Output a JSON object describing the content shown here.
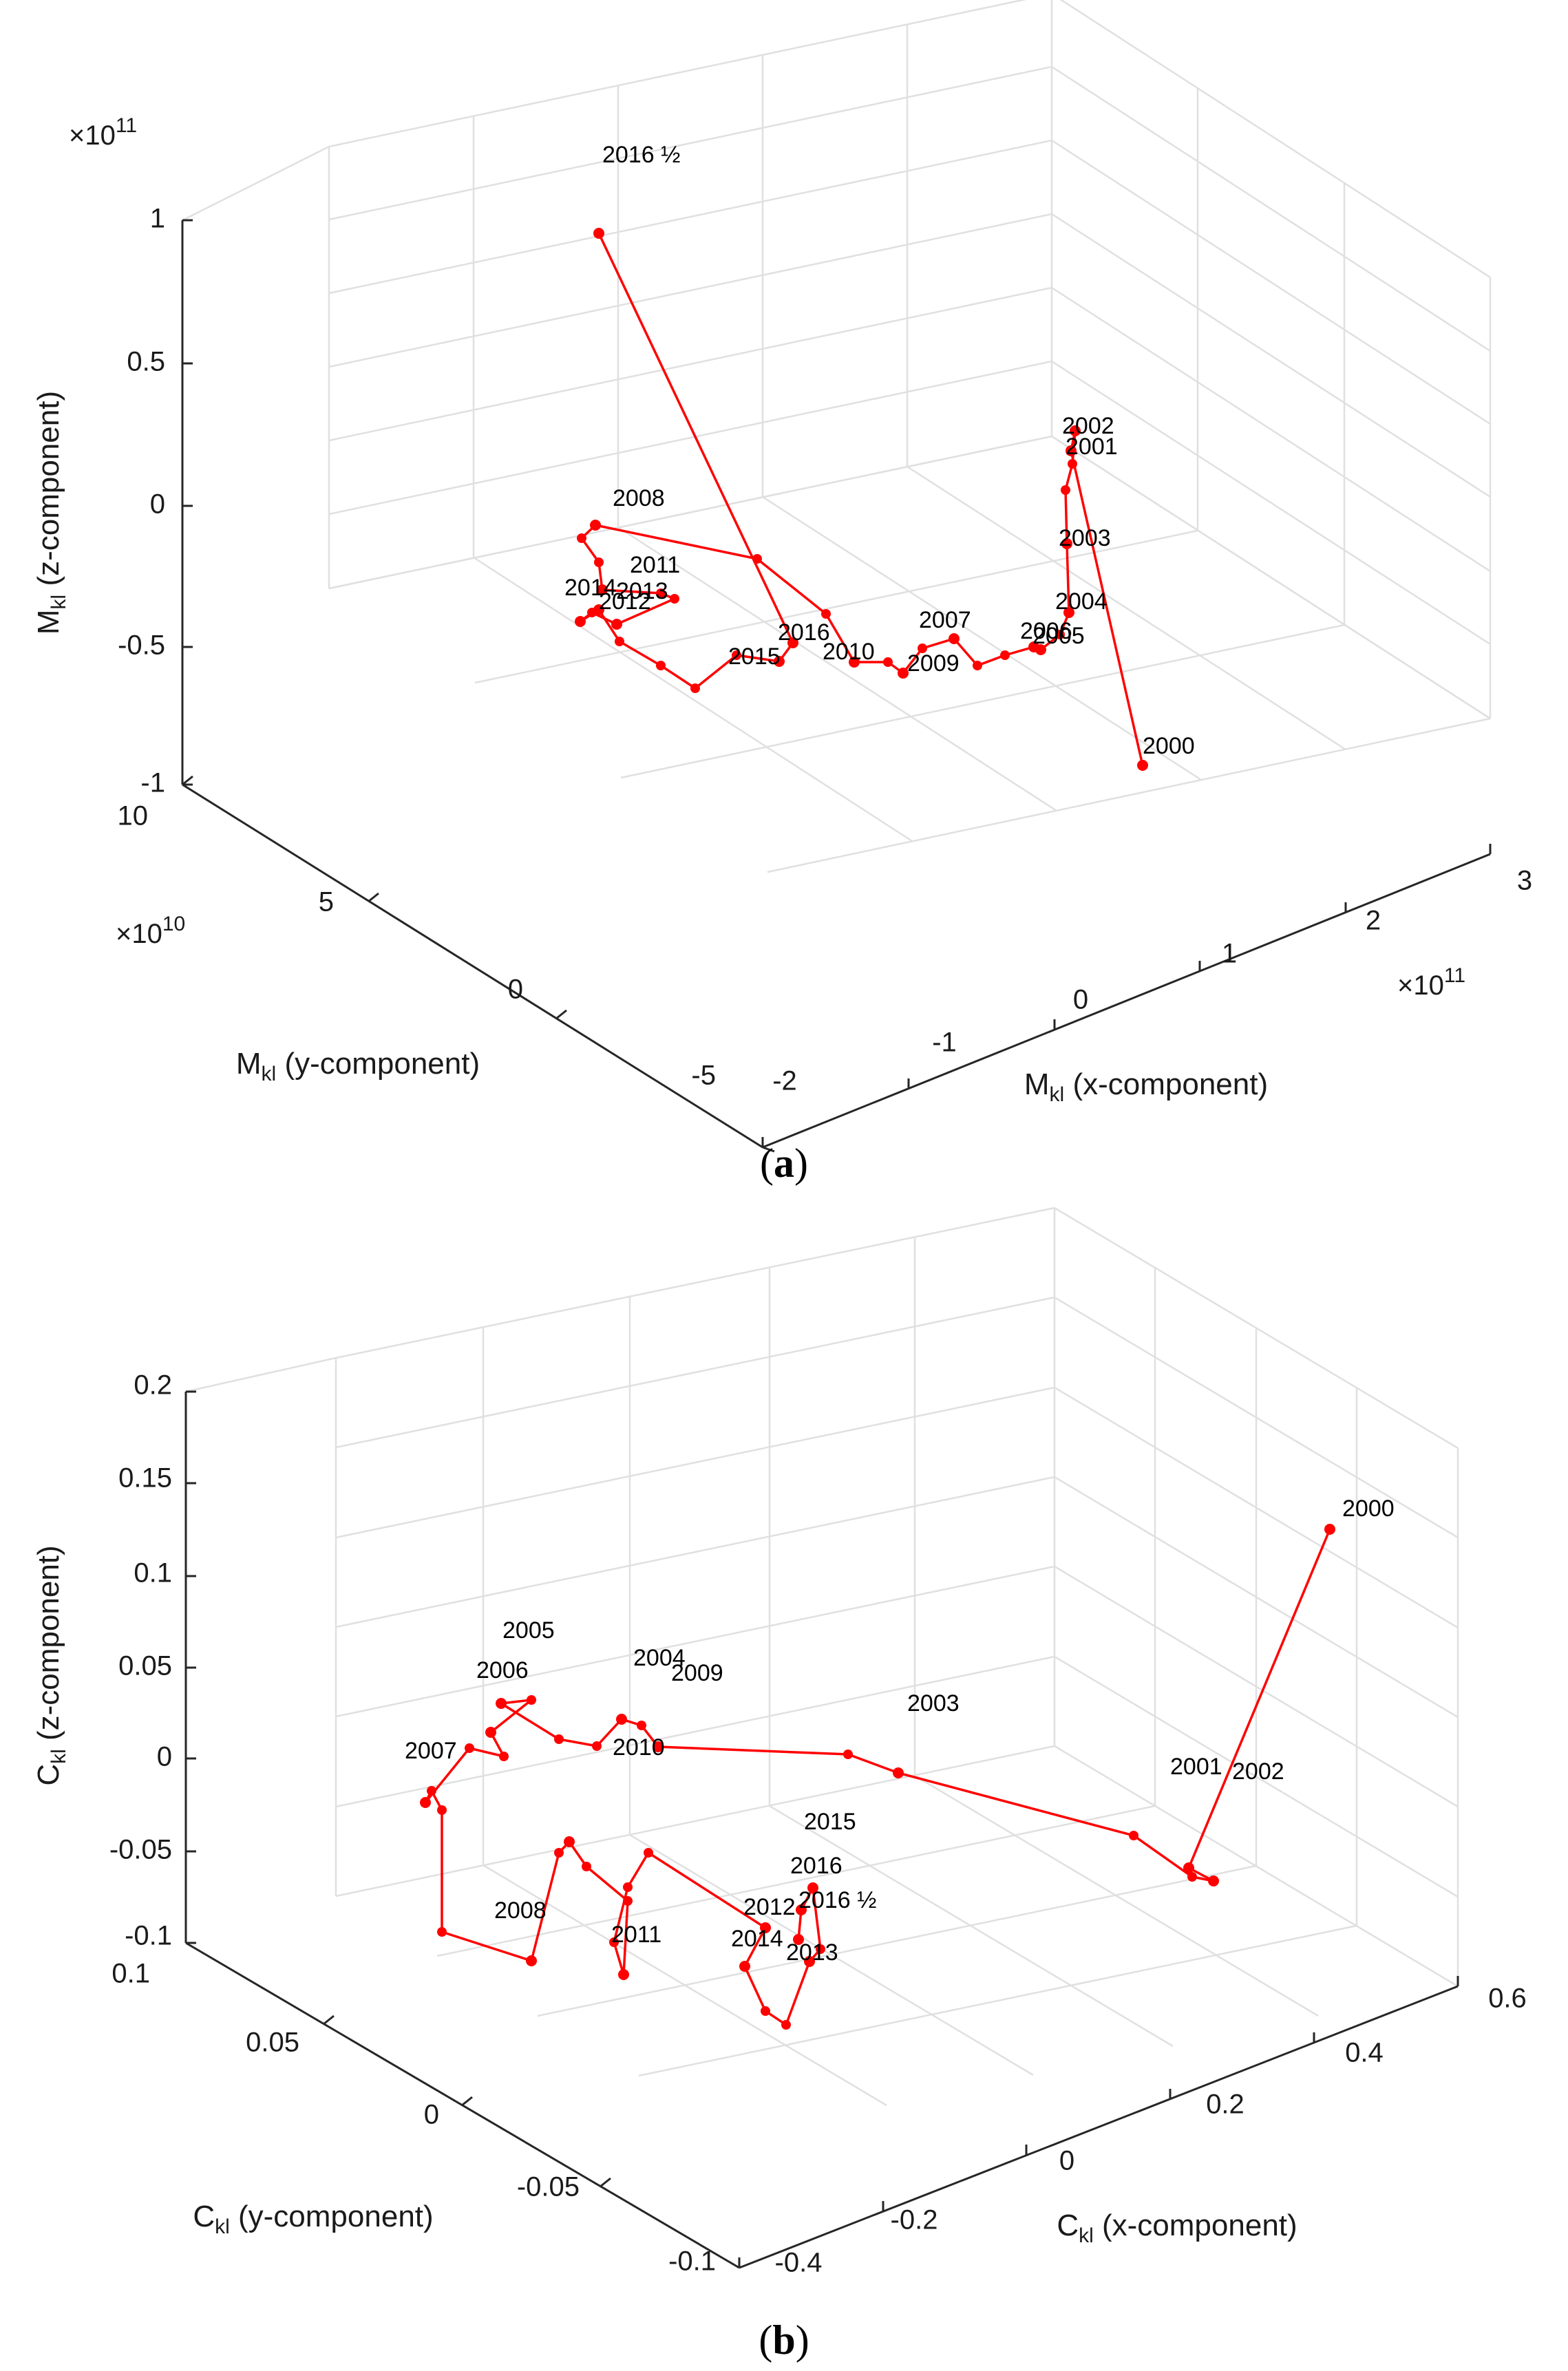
{
  "chart_data": [
    {
      "type": "line3d",
      "panel": "(a)",
      "caption_letter": "a",
      "color": "#ff0000",
      "xlabel": {
        "main": "M",
        "sub": "kl",
        "rest": " (x-component)"
      },
      "ylabel": {
        "main": "M",
        "sub": "kl",
        "rest": " (y-component)"
      },
      "zlabel": {
        "main": "M",
        "sub": "kl",
        "rest": " (z-component)"
      },
      "x_exponent": "11",
      "y_exponent": "10",
      "z_exponent": "11",
      "x_ticks": [
        "-2",
        "-1",
        "0",
        "1",
        "2",
        "3"
      ],
      "y_ticks": [
        "10",
        "5",
        "0",
        "-5"
      ],
      "z_ticks": [
        "1",
        "0.5",
        "0",
        "-0.5",
        "-1"
      ],
      "points": [
        {
          "year": "2000",
          "ox": 0,
          "oy": 0
        },
        {
          "year": "2001",
          "ox": -104,
          "oy": -457
        },
        {
          "year": "2002",
          "ox": -98,
          "oy": -486
        },
        {
          "year": "2003",
          "ox": -110,
          "oy": -322
        },
        {
          "year": "2004",
          "ox": -107,
          "oy": -222
        },
        {
          "year": "2005",
          "ox": -148,
          "oy": -168
        },
        {
          "year": "2006",
          "ox": -158,
          "oy": -172
        },
        {
          "year": "2007",
          "ox": -274,
          "oy": -184
        },
        {
          "year": "2009",
          "ox": -348,
          "oy": -134
        },
        {
          "year": "2010",
          "ox": -419,
          "oy": -150
        },
        {
          "year": "2008",
          "ox": -795,
          "oy": -349
        },
        {
          "year": "2011",
          "ox": -785,
          "oy": -255
        },
        {
          "year": "2012",
          "ox": -764,
          "oy": -205
        },
        {
          "year": "2014",
          "ox": -817,
          "oy": -209
        },
        {
          "year": "2013",
          "ox": -790,
          "oy": -226
        },
        {
          "year": "2015",
          "ox": -528,
          "oy": -151
        },
        {
          "year": "2016",
          "ox": -508,
          "oy": -178
        },
        {
          "year": "2016 ½",
          "ox": -790,
          "oy": -773
        }
      ],
      "labels": [
        "2016 ½",
        "2008",
        "2011",
        "2014",
        "2013",
        "2012",
        "2016",
        "2015",
        "2010",
        "2007",
        "2009",
        "2006",
        "2005",
        "2004",
        "2003",
        "2002",
        "2001",
        "2000"
      ]
    },
    {
      "type": "line3d",
      "panel": "(b)",
      "caption_letter": "b",
      "color": "#ff0000",
      "xlabel": {
        "main": "C",
        "sub": "kl",
        "rest": " (x-component)"
      },
      "ylabel": {
        "main": "C",
        "sub": "kl",
        "rest": " (y-component)"
      },
      "zlabel": {
        "main": "C",
        "sub": "kl",
        "rest": " (z-component)"
      },
      "x_ticks": [
        "-0.4",
        "-0.2",
        "0",
        "0.2",
        "0.4",
        "0.6"
      ],
      "y_ticks": [
        "0.1",
        "0.05",
        "0",
        "-0.05",
        "-0.1"
      ],
      "z_ticks": [
        "0.2",
        "0.15",
        "0.1",
        "0.05",
        "0",
        "-0.05",
        "-0.1"
      ],
      "points": [
        {
          "year": "2000",
          "ox": 0,
          "oy": 0
        },
        {
          "year": "2001",
          "ox": -205,
          "oy": 492
        },
        {
          "year": "2002",
          "ox": -169,
          "oy": 511
        },
        {
          "year": "2003",
          "ox": -627,
          "oy": 354
        },
        {
          "year": "2009",
          "ox": -976,
          "oy": 316
        },
        {
          "year": "2004",
          "ox": -1029,
          "oy": 276
        },
        {
          "year": "2005",
          "ox": -1204,
          "oy": 253
        },
        {
          "year": "2006",
          "ox": -1219,
          "oy": 295
        },
        {
          "year": "2007",
          "ox": -1314,
          "oy": 397
        },
        {
          "year": "2008",
          "ox": -1160,
          "oy": 627
        },
        {
          "year": "2010",
          "ox": -1105,
          "oy": 454
        },
        {
          "year": "2011",
          "ox": -1026,
          "oy": 647
        },
        {
          "year": "2012",
          "ox": -820,
          "oy": 579
        },
        {
          "year": "2014",
          "ox": -850,
          "oy": 635
        },
        {
          "year": "2013",
          "ox": -756,
          "oy": 628
        },
        {
          "year": "2015",
          "ox": -751,
          "oy": 521
        },
        {
          "year": "2016",
          "ox": -768,
          "oy": 553
        },
        {
          "year": "2016 ½",
          "ox": -772,
          "oy": 596
        }
      ],
      "labels": [
        "2000",
        "2001",
        "2002",
        "2003",
        "2009",
        "2004",
        "2005",
        "2006",
        "2007",
        "2008",
        "2010",
        "2011",
        "2012",
        "2014",
        "2013",
        "2015",
        "2016",
        "2016 ½"
      ]
    }
  ]
}
